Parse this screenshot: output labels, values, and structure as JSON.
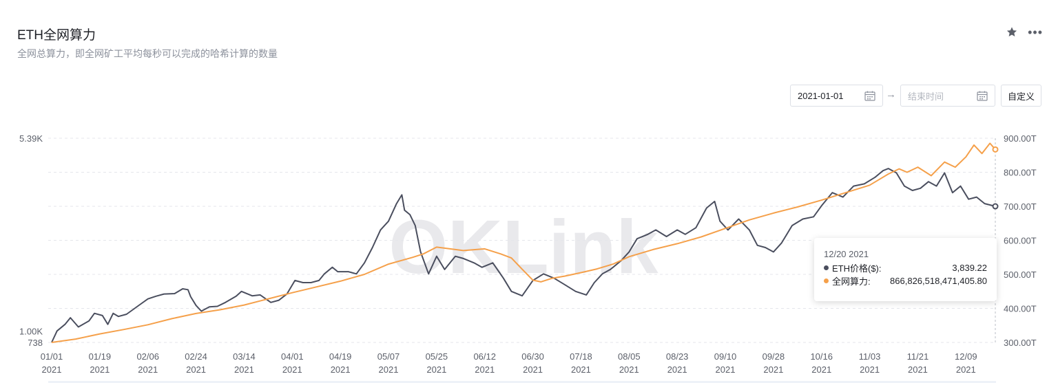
{
  "header": {
    "title": "ETH全网算力",
    "subtitle": "全网总算力，即全网矿工平均每秒可以完成的哈希计算的数量"
  },
  "controls": {
    "start_date": "2021-01-01",
    "end_placeholder": "结束时间",
    "custom_label": "自定义"
  },
  "watermark": "OKLink",
  "tooltip": {
    "date": "12/20 2021",
    "rows": [
      {
        "label": "ETH价格($):",
        "value": "3,839.22"
      },
      {
        "label": "全网算力:",
        "value": "866,826,518,471,405.80"
      }
    ]
  },
  "colors": {
    "price": "#4a4e5e",
    "hashrate": "#f5a04a",
    "grid": "#e4e6eb",
    "axis_text": "#5b5f69"
  },
  "chart_data": {
    "type": "line",
    "x_tick_labels": [
      [
        "01/01",
        "2021"
      ],
      [
        "01/19",
        "2021"
      ],
      [
        "02/06",
        "2021"
      ],
      [
        "02/24",
        "2021"
      ],
      [
        "03/14",
        "2021"
      ],
      [
        "04/01",
        "2021"
      ],
      [
        "04/19",
        "2021"
      ],
      [
        "05/07",
        "2021"
      ],
      [
        "05/25",
        "2021"
      ],
      [
        "06/12",
        "2021"
      ],
      [
        "06/30",
        "2021"
      ],
      [
        "07/18",
        "2021"
      ],
      [
        "08/05",
        "2021"
      ],
      [
        "08/23",
        "2021"
      ],
      [
        "09/10",
        "2021"
      ],
      [
        "09/28",
        "2021"
      ],
      [
        "10/16",
        "2021"
      ],
      [
        "11/03",
        "2021"
      ],
      [
        "11/21",
        "2021"
      ],
      [
        "12/09",
        "2021"
      ]
    ],
    "x_range": [
      "2021-01-01",
      "2021-12-20"
    ],
    "left_axis": {
      "ticks": [
        "5.39K",
        "1.00K",
        "738"
      ],
      "ylim": [
        738,
        5390
      ]
    },
    "right_axis": {
      "ticks": [
        "900.00T",
        "800.00T",
        "700.00T",
        "600.00T",
        "500.00T",
        "400.00T",
        "300.00T"
      ],
      "ylim": [
        300,
        900
      ]
    },
    "grid": true,
    "series": [
      {
        "name": "ETH价格($)",
        "axis": "left",
        "points": [
          [
            "2021-01-01",
            738
          ],
          [
            "2021-01-03",
            1000
          ],
          [
            "2021-01-06",
            1150
          ],
          [
            "2021-01-08",
            1300
          ],
          [
            "2021-01-11",
            1090
          ],
          [
            "2021-01-15",
            1230
          ],
          [
            "2021-01-17",
            1400
          ],
          [
            "2021-01-20",
            1350
          ],
          [
            "2021-01-22",
            1150
          ],
          [
            "2021-01-24",
            1400
          ],
          [
            "2021-01-26",
            1330
          ],
          [
            "2021-01-29",
            1380
          ],
          [
            "2021-02-03",
            1600
          ],
          [
            "2021-02-06",
            1730
          ],
          [
            "2021-02-09",
            1790
          ],
          [
            "2021-02-12",
            1840
          ],
          [
            "2021-02-16",
            1850
          ],
          [
            "2021-02-19",
            1960
          ],
          [
            "2021-02-21",
            1940
          ],
          [
            "2021-02-22",
            1780
          ],
          [
            "2021-02-24",
            1580
          ],
          [
            "2021-02-26",
            1450
          ],
          [
            "2021-03-01",
            1550
          ],
          [
            "2021-03-04",
            1560
          ],
          [
            "2021-03-07",
            1650
          ],
          [
            "2021-03-11",
            1790
          ],
          [
            "2021-03-13",
            1900
          ],
          [
            "2021-03-17",
            1800
          ],
          [
            "2021-03-20",
            1820
          ],
          [
            "2021-03-24",
            1650
          ],
          [
            "2021-03-27",
            1700
          ],
          [
            "2021-03-30",
            1840
          ],
          [
            "2021-04-02",
            2150
          ],
          [
            "2021-04-05",
            2100
          ],
          [
            "2021-04-08",
            2100
          ],
          [
            "2021-04-11",
            2150
          ],
          [
            "2021-04-13",
            2300
          ],
          [
            "2021-04-16",
            2450
          ],
          [
            "2021-04-18",
            2350
          ],
          [
            "2021-04-22",
            2350
          ],
          [
            "2021-04-25",
            2300
          ],
          [
            "2021-04-28",
            2550
          ],
          [
            "2021-05-01",
            2900
          ],
          [
            "2021-05-04",
            3300
          ],
          [
            "2021-05-07",
            3500
          ],
          [
            "2021-05-10",
            3900
          ],
          [
            "2021-05-12",
            4100
          ],
          [
            "2021-05-13",
            3750
          ],
          [
            "2021-05-15",
            3650
          ],
          [
            "2021-05-17",
            3400
          ],
          [
            "2021-05-19",
            2800
          ],
          [
            "2021-05-22",
            2300
          ],
          [
            "2021-05-25",
            2700
          ],
          [
            "2021-05-28",
            2400
          ],
          [
            "2021-06-01",
            2700
          ],
          [
            "2021-06-04",
            2650
          ],
          [
            "2021-06-08",
            2550
          ],
          [
            "2021-06-11",
            2450
          ],
          [
            "2021-06-15",
            2550
          ],
          [
            "2021-06-19",
            2200
          ],
          [
            "2021-06-22",
            1900
          ],
          [
            "2021-06-26",
            1800
          ],
          [
            "2021-06-30",
            2150
          ],
          [
            "2021-07-04",
            2300
          ],
          [
            "2021-07-08",
            2200
          ],
          [
            "2021-07-12",
            2050
          ],
          [
            "2021-07-16",
            1900
          ],
          [
            "2021-07-20",
            1820
          ],
          [
            "2021-07-23",
            2100
          ],
          [
            "2021-07-26",
            2300
          ],
          [
            "2021-07-29",
            2400
          ],
          [
            "2021-08-02",
            2600
          ],
          [
            "2021-08-05",
            2800
          ],
          [
            "2021-08-08",
            3100
          ],
          [
            "2021-08-12",
            3200
          ],
          [
            "2021-08-15",
            3300
          ],
          [
            "2021-08-19",
            3150
          ],
          [
            "2021-08-23",
            3300
          ],
          [
            "2021-08-26",
            3200
          ],
          [
            "2021-08-30",
            3350
          ],
          [
            "2021-09-03",
            3800
          ],
          [
            "2021-09-06",
            3950
          ],
          [
            "2021-09-08",
            3500
          ],
          [
            "2021-09-11",
            3300
          ],
          [
            "2021-09-15",
            3550
          ],
          [
            "2021-09-19",
            3300
          ],
          [
            "2021-09-22",
            2950
          ],
          [
            "2021-09-25",
            2900
          ],
          [
            "2021-09-28",
            2800
          ],
          [
            "2021-10-01",
            3000
          ],
          [
            "2021-10-05",
            3400
          ],
          [
            "2021-10-09",
            3550
          ],
          [
            "2021-10-13",
            3600
          ],
          [
            "2021-10-16",
            3850
          ],
          [
            "2021-10-20",
            4150
          ],
          [
            "2021-10-24",
            4050
          ],
          [
            "2021-10-28",
            4300
          ],
          [
            "2021-11-01",
            4350
          ],
          [
            "2021-11-05",
            4500
          ],
          [
            "2021-11-08",
            4650
          ],
          [
            "2021-11-10",
            4700
          ],
          [
            "2021-11-13",
            4600
          ],
          [
            "2021-11-16",
            4300
          ],
          [
            "2021-11-19",
            4200
          ],
          [
            "2021-11-22",
            4250
          ],
          [
            "2021-11-25",
            4400
          ],
          [
            "2021-11-28",
            4300
          ],
          [
            "2021-12-01",
            4600
          ],
          [
            "2021-12-04",
            4150
          ],
          [
            "2021-12-07",
            4300
          ],
          [
            "2021-12-10",
            4000
          ],
          [
            "2021-12-13",
            4050
          ],
          [
            "2021-12-16",
            3900
          ],
          [
            "2021-12-20",
            3839
          ]
        ]
      },
      {
        "name": "全网算力",
        "axis": "right",
        "points": [
          [
            "2021-01-01",
            300
          ],
          [
            "2021-01-10",
            310
          ],
          [
            "2021-01-19",
            325
          ],
          [
            "2021-01-28",
            338
          ],
          [
            "2021-02-06",
            352
          ],
          [
            "2021-02-15",
            370
          ],
          [
            "2021-02-24",
            385
          ],
          [
            "2021-03-05",
            396
          ],
          [
            "2021-03-14",
            410
          ],
          [
            "2021-03-23",
            428
          ],
          [
            "2021-04-01",
            446
          ],
          [
            "2021-04-10",
            463
          ],
          [
            "2021-04-19",
            480
          ],
          [
            "2021-04-28",
            500
          ],
          [
            "2021-05-07",
            530
          ],
          [
            "2021-05-16",
            550
          ],
          [
            "2021-05-20",
            560
          ],
          [
            "2021-05-25",
            580
          ],
          [
            "2021-05-30",
            575
          ],
          [
            "2021-06-04",
            570
          ],
          [
            "2021-06-12",
            575
          ],
          [
            "2021-06-18",
            560
          ],
          [
            "2021-06-22",
            548
          ],
          [
            "2021-06-26",
            515
          ],
          [
            "2021-06-30",
            483
          ],
          [
            "2021-07-03",
            478
          ],
          [
            "2021-07-07",
            488
          ],
          [
            "2021-07-12",
            495
          ],
          [
            "2021-07-18",
            505
          ],
          [
            "2021-07-24",
            516
          ],
          [
            "2021-07-30",
            530
          ],
          [
            "2021-08-05",
            552
          ],
          [
            "2021-08-14",
            573
          ],
          [
            "2021-08-23",
            590
          ],
          [
            "2021-09-01",
            610
          ],
          [
            "2021-09-10",
            635
          ],
          [
            "2021-09-19",
            660
          ],
          [
            "2021-09-28",
            680
          ],
          [
            "2021-10-07",
            698
          ],
          [
            "2021-10-16",
            718
          ],
          [
            "2021-10-25",
            740
          ],
          [
            "2021-11-03",
            762
          ],
          [
            "2021-11-10",
            795
          ],
          [
            "2021-11-14",
            810
          ],
          [
            "2021-11-17",
            800
          ],
          [
            "2021-11-21",
            815
          ],
          [
            "2021-11-26",
            790
          ],
          [
            "2021-12-01",
            830
          ],
          [
            "2021-12-05",
            815
          ],
          [
            "2021-12-09",
            845
          ],
          [
            "2021-12-12",
            880
          ],
          [
            "2021-12-15",
            855
          ],
          [
            "2021-12-18",
            885
          ],
          [
            "2021-12-20",
            867
          ]
        ]
      }
    ],
    "highlight_date": "2021-12-20",
    "legend": "none"
  }
}
